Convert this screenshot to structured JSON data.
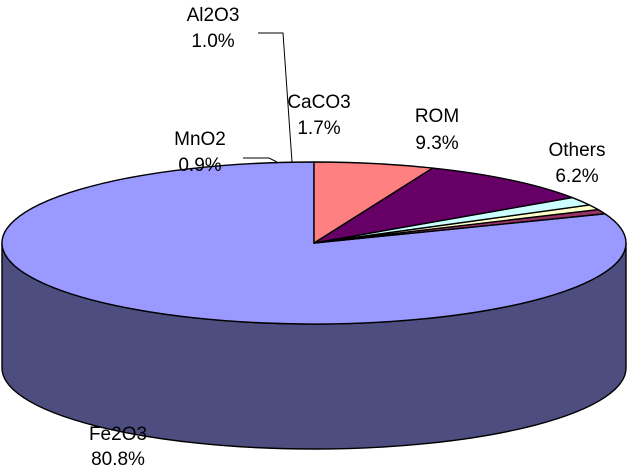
{
  "chart_data": {
    "type": "pie",
    "title": "",
    "three_d": true,
    "slices": [
      {
        "name": "Fe2O3",
        "value": 80.8,
        "label": "80.8%",
        "color": "#9999ff",
        "side_color": "#4d4d80"
      },
      {
        "name": "MnO2",
        "value": 0.9,
        "label": "0.9%",
        "color": "#993366",
        "side_color": "#4d1a33"
      },
      {
        "name": "Al2O3",
        "value": 1.0,
        "label": "1.0%",
        "color": "#ffffcc",
        "side_color": "#808066"
      },
      {
        "name": "CaCO3",
        "value": 1.7,
        "label": "1.7%",
        "color": "#ccffff",
        "side_color": "#668080"
      },
      {
        "name": "ROM",
        "value": 9.3,
        "label": "9.3%",
        "color": "#660066",
        "side_color": "#330033"
      },
      {
        "name": "Others",
        "value": 6.2,
        "label": "6.2%",
        "color": "#ff8080",
        "side_color": "#804040"
      }
    ]
  }
}
